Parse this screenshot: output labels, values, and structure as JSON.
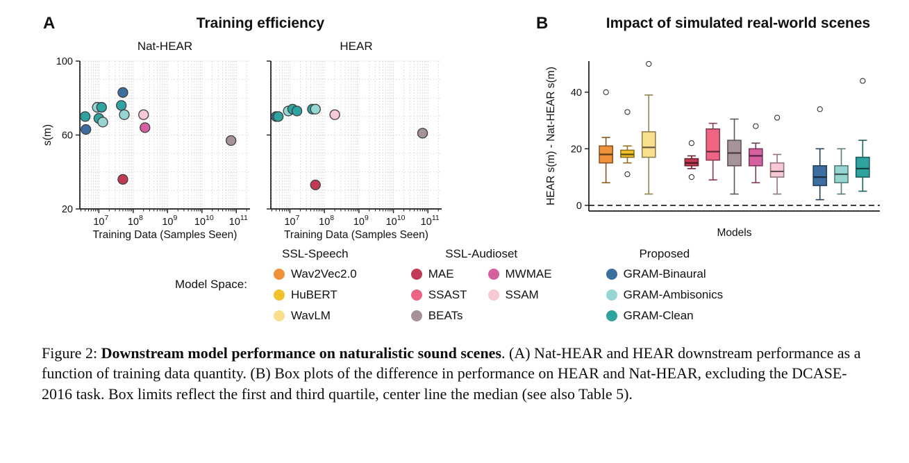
{
  "panelA": {
    "label": "A",
    "title": "Training efficiency"
  },
  "panelB": {
    "label": "B",
    "title": "Impact of simulated real-world scenes"
  },
  "model_colors": {
    "Wav2Vec2.0": "#F0913A",
    "HuBERT": "#F2C12E",
    "WavLM": "#FAE08E",
    "MAE": "#C13A54",
    "SSAST": "#EE6584",
    "BEATs": "#A5929A",
    "MWMAE": "#D6609F",
    "SSAM": "#F7C9D4",
    "GRAM-Binaural": "#3C6FA0",
    "GRAM-Ambisonics": "#96D6D2",
    "GRAM-Clean": "#2FA3A0"
  },
  "chart_data": [
    {
      "id": "scatter_nat_hear",
      "type": "scatter",
      "title": "Nat-HEAR",
      "xlabel": "Training Data (Samples Seen)",
      "ylabel": "s(m)",
      "xscale": "log",
      "xlim": [
        2800000,
        250000000000
      ],
      "ylim": [
        20,
        100
      ],
      "yticks": [
        20,
        60,
        100
      ],
      "xticks": [
        "10^7",
        "10^8",
        "10^9",
        "10^10",
        "10^11"
      ],
      "show_ytick_labels": true,
      "points": [
        {
          "model": "GRAM-Clean",
          "x": 4000000,
          "y": 70
        },
        {
          "model": "GRAM-Binaural",
          "x": 4200000,
          "y": 63
        },
        {
          "model": "GRAM-Ambisonics",
          "x": 9000000,
          "y": 75
        },
        {
          "model": "GRAM-Clean",
          "x": 12000000,
          "y": 75
        },
        {
          "model": "GRAM-Clean",
          "x": 10000000,
          "y": 69
        },
        {
          "model": "GRAM-Ambisonics",
          "x": 13000000,
          "y": 67
        },
        {
          "model": "GRAM-Binaural",
          "x": 50000000,
          "y": 83
        },
        {
          "model": "GRAM-Clean",
          "x": 45000000,
          "y": 76
        },
        {
          "model": "GRAM-Ambisonics",
          "x": 55000000,
          "y": 71
        },
        {
          "model": "MAE",
          "x": 50000000,
          "y": 36
        },
        {
          "model": "SSAM",
          "x": 200000000,
          "y": 71
        },
        {
          "model": "MWMAE",
          "x": 220000000,
          "y": 64
        },
        {
          "model": "BEATs",
          "x": 70000000000,
          "y": 57
        }
      ]
    },
    {
      "id": "scatter_hear",
      "type": "scatter",
      "title": "HEAR",
      "xlabel": "Training Data (Samples Seen)",
      "ylabel": "",
      "xscale": "log",
      "xlim": [
        2800000,
        250000000000
      ],
      "ylim": [
        20,
        100
      ],
      "yticks": [
        20,
        60,
        100
      ],
      "xticks": [
        "10^7",
        "10^8",
        "10^9",
        "10^10",
        "10^11"
      ],
      "show_ytick_labels": false,
      "points": [
        {
          "model": "GRAM-Binaural",
          "x": 4000000,
          "y": 70
        },
        {
          "model": "GRAM-Clean",
          "x": 4600000,
          "y": 70
        },
        {
          "model": "GRAM-Ambisonics",
          "x": 9000000,
          "y": 73
        },
        {
          "model": "GRAM-Clean",
          "x": 12000000,
          "y": 74
        },
        {
          "model": "GRAM-Clean",
          "x": 16000000,
          "y": 73
        },
        {
          "model": "GRAM-Clean",
          "x": 45000000,
          "y": 74
        },
        {
          "model": "GRAM-Ambisonics",
          "x": 55000000,
          "y": 74
        },
        {
          "model": "MAE",
          "x": 55000000,
          "y": 33
        },
        {
          "model": "SSAM",
          "x": 200000000,
          "y": 71
        },
        {
          "model": "BEATs",
          "x": 70000000000,
          "y": 61
        }
      ]
    },
    {
      "id": "box_impact",
      "type": "box",
      "title": "Impact of simulated real-world scenes",
      "xlabel": "Models",
      "ylabel": "HEAR s(m) - Nat-HEAR s(m)",
      "ylim": [
        -2,
        51
      ],
      "yticks": [
        0,
        20,
        40
      ],
      "xlim": [
        0.2,
        13.8
      ],
      "zero_line": true,
      "boxes": [
        {
          "model": "Wav2Vec2.0",
          "pos": 1,
          "whislo": 8,
          "q1": 15,
          "med": 18,
          "q3": 21,
          "whishi": 24,
          "outliers": [
            40
          ]
        },
        {
          "model": "HuBERT",
          "pos": 2,
          "whislo": 15,
          "q1": 17,
          "med": 18,
          "q3": 19.5,
          "whishi": 21,
          "outliers": [
            33,
            11
          ]
        },
        {
          "model": "WavLM",
          "pos": 3,
          "whislo": 4,
          "q1": 17,
          "med": 20.5,
          "q3": 26,
          "whishi": 39,
          "outliers": [
            50
          ]
        },
        {
          "model": "MAE",
          "pos": 5,
          "whislo": 13,
          "q1": 14,
          "med": 15,
          "q3": 16.5,
          "whishi": 17.5,
          "outliers": [
            22,
            10
          ]
        },
        {
          "model": "SSAST",
          "pos": 6,
          "whislo": 9,
          "q1": 16,
          "med": 19,
          "q3": 27,
          "whishi": 29,
          "outliers": []
        },
        {
          "model": "BEATs",
          "pos": 7,
          "whislo": 4,
          "q1": 14,
          "med": 18.5,
          "q3": 23,
          "whishi": 30.5,
          "outliers": []
        },
        {
          "model": "MWMAE",
          "pos": 8,
          "whislo": 8,
          "q1": 14,
          "med": 17.5,
          "q3": 20,
          "whishi": 22,
          "outliers": [
            28
          ]
        },
        {
          "model": "SSAM",
          "pos": 9,
          "whislo": 4,
          "q1": 10,
          "med": 12,
          "q3": 15,
          "whishi": 18,
          "outliers": [
            31
          ]
        },
        {
          "model": "GRAM-Binaural",
          "pos": 11,
          "whislo": 2,
          "q1": 7,
          "med": 10,
          "q3": 14,
          "whishi": 20,
          "outliers": [
            34
          ]
        },
        {
          "model": "GRAM-Ambisonics",
          "pos": 12,
          "whislo": 4,
          "q1": 8,
          "med": 11,
          "q3": 14,
          "whishi": 20,
          "outliers": []
        },
        {
          "model": "GRAM-Clean",
          "pos": 13,
          "whislo": 5,
          "q1": 10,
          "med": 13,
          "q3": 17,
          "whishi": 23,
          "outliers": [
            44
          ]
        }
      ]
    }
  ],
  "legend": {
    "label": "Model Space:",
    "groups": [
      {
        "name": "SSL-Speech",
        "columns": [
          [
            "Wav2Vec2.0",
            "HuBERT",
            "WavLM"
          ]
        ]
      },
      {
        "name": "SSL-Audioset",
        "columns": [
          [
            "MAE",
            "SSAST",
            "BEATs"
          ],
          [
            "MWMAE",
            "SSAM"
          ]
        ]
      },
      {
        "name": "Proposed",
        "columns": [
          [
            "GRAM-Binaural",
            "GRAM-Ambisonics",
            "GRAM-Clean"
          ]
        ]
      }
    ]
  },
  "caption": {
    "prefix": "Figure 2: ",
    "bold": "Downstream model performance on naturalistic sound scenes",
    "rest": ". (A) Nat-HEAR and HEAR downstream performance as a function of training data quantity. (B) Box plots of the difference in performance on HEAR and Nat-HEAR, excluding the DCASE-2016 task. Box limits reflect the first and third quartile, center line the median (see also Table 5)."
  }
}
